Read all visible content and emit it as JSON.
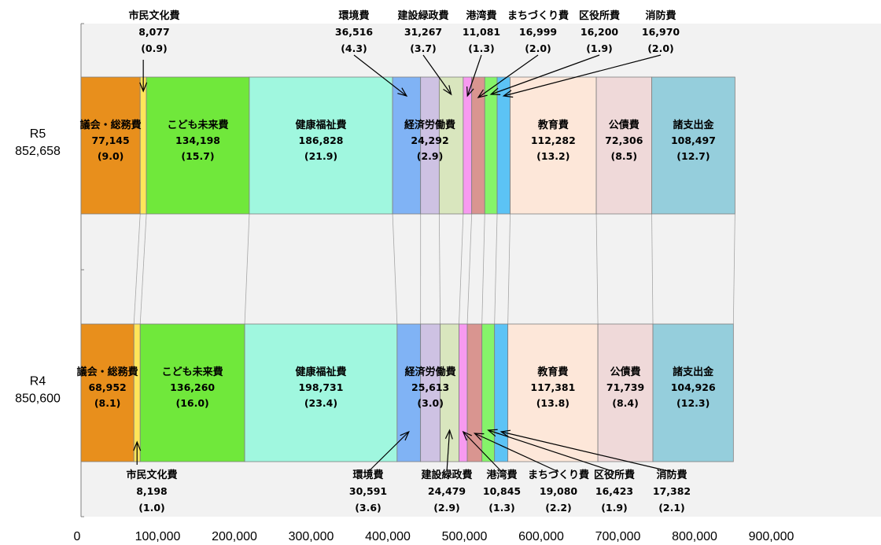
{
  "chart_data": {
    "type": "bar",
    "stacked": true,
    "orientation": "horizontal",
    "title": "",
    "xlabel": "",
    "ylabel": "",
    "xlim": [
      0,
      950000
    ],
    "x_ticks": [
      "0",
      "100,000",
      "200,000",
      "300,000",
      "400,000",
      "500,000",
      "600,000",
      "700,000",
      "800,000",
      "900,000"
    ],
    "x_tick_values": [
      0,
      100000,
      200000,
      300000,
      400000,
      500000,
      600000,
      700000,
      800000,
      900000
    ],
    "grid": false,
    "categories": [
      {
        "id": "gikai",
        "name": "議会・総務費",
        "color": "#E88F1C",
        "label_pos": "inside"
      },
      {
        "id": "shimin",
        "name": "市民文化費",
        "color": "#FFE55A",
        "label_pos": "outside"
      },
      {
        "id": "kodomo",
        "name": "こども未来費",
        "color": "#70E83B",
        "label_pos": "inside"
      },
      {
        "id": "kenko",
        "name": "健康福祉費",
        "color": "#A0F7DF",
        "label_pos": "inside"
      },
      {
        "id": "kankyo",
        "name": "環境費",
        "color": "#80B3F5",
        "label_pos": "outside"
      },
      {
        "id": "keizai",
        "name": "経済労働費",
        "color": "#CEC2E3",
        "label_pos": "inside"
      },
      {
        "id": "kensetsu",
        "name": "建設緑政費",
        "color": "#D9E6BE",
        "label_pos": "outside"
      },
      {
        "id": "kowan",
        "name": "港湾費",
        "color": "#F79AF0",
        "label_pos": "outside"
      },
      {
        "id": "machi",
        "name": "まちづくり費",
        "color": "#D99590",
        "label_pos": "outside"
      },
      {
        "id": "kuyaku",
        "name": "区役所費",
        "color": "#85F46A",
        "label_pos": "outside"
      },
      {
        "id": "shobo",
        "name": "消防費",
        "color": "#5CC3F5",
        "label_pos": "outside"
      },
      {
        "id": "kyoiku",
        "name": "教育費",
        "color": "#FDE7D9",
        "label_pos": "inside"
      },
      {
        "id": "kosai",
        "name": "公債費",
        "color": "#EFD9D9",
        "label_pos": "inside"
      },
      {
        "id": "shoshi",
        "name": "諸支出金",
        "color": "#95CEDC",
        "label_pos": "inside"
      }
    ],
    "series": [
      {
        "name": "R5",
        "total": "852,658",
        "values": [
          77145,
          8077,
          134198,
          186828,
          36516,
          24292,
          31267,
          11081,
          16999,
          16200,
          16970,
          112282,
          72306,
          108497
        ],
        "value_labels": [
          "77,145",
          "8,077",
          "134,198",
          "186,828",
          "36,516",
          "24,292",
          "31,267",
          "11,081",
          "16,999",
          "16,200",
          "16,970",
          "112,282",
          "72,306",
          "108,497"
        ],
        "pct_labels": [
          "(9.0)",
          "(0.9)",
          "(15.7)",
          "(21.9)",
          "(4.3)",
          "(2.9)",
          "(3.7)",
          "(1.3)",
          "(2.0)",
          "(1.9)",
          "(2.0)",
          "(13.2)",
          "(8.5)",
          "(12.7)"
        ]
      },
      {
        "name": "R4",
        "total": "850,600",
        "values": [
          68952,
          8198,
          136260,
          198731,
          30591,
          25613,
          24479,
          10845,
          19080,
          16423,
          17382,
          117381,
          71739,
          104926
        ],
        "value_labels": [
          "68,952",
          "8,198",
          "136,260",
          "198,731",
          "30,591",
          "25,613",
          "24,479",
          "10,845",
          "19,080",
          "16,423",
          "17,382",
          "117,381",
          "71,739",
          "104,926"
        ],
        "pct_labels": [
          "(8.1)",
          "(1.0)",
          "(16.0)",
          "(23.4)",
          "(3.6)",
          "(3.0)",
          "(2.9)",
          "(1.3)",
          "(2.2)",
          "(1.9)",
          "(2.1)",
          "(13.8)",
          "(8.4)",
          "(12.3)"
        ]
      }
    ]
  }
}
